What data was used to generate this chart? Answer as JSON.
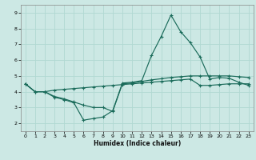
{
  "xlabel": "Humidex (Indice chaleur)",
  "xlim": [
    -0.5,
    23.5
  ],
  "ylim": [
    1.5,
    9.5
  ],
  "yticks": [
    2,
    3,
    4,
    5,
    6,
    7,
    8,
    9
  ],
  "xticks": [
    0,
    1,
    2,
    3,
    4,
    5,
    6,
    7,
    8,
    9,
    10,
    11,
    12,
    13,
    14,
    15,
    16,
    17,
    18,
    19,
    20,
    21,
    22,
    23
  ],
  "bg_color": "#cce8e4",
  "grid_color": "#b0d8d2",
  "line_color": "#1a6b5a",
  "line1_x": [
    0,
    1,
    2,
    3,
    4,
    5,
    6,
    7,
    8,
    9,
    10,
    11,
    12,
    13,
    14,
    15,
    16,
    17,
    18,
    19,
    20,
    21,
    22,
    23
  ],
  "line1_y": [
    4.5,
    4.0,
    4.0,
    3.65,
    3.5,
    3.3,
    2.2,
    2.3,
    2.4,
    2.8,
    4.55,
    4.6,
    4.7,
    6.3,
    7.5,
    8.85,
    7.8,
    7.1,
    6.2,
    4.8,
    4.9,
    4.85,
    4.6,
    4.4
  ],
  "line2_x": [
    0,
    1,
    2,
    3,
    4,
    5,
    6,
    7,
    8,
    9,
    10,
    11,
    12,
    13,
    14,
    15,
    16,
    17,
    18,
    19,
    20,
    21,
    22,
    23
  ],
  "line2_y": [
    4.5,
    4.0,
    4.0,
    4.1,
    4.15,
    4.2,
    4.25,
    4.3,
    4.35,
    4.4,
    4.45,
    4.5,
    4.55,
    4.6,
    4.65,
    4.7,
    4.75,
    4.8,
    4.4,
    4.4,
    4.45,
    4.5,
    4.5,
    4.5
  ],
  "line3_x": [
    0,
    1,
    2,
    3,
    4,
    5,
    6,
    7,
    8,
    9,
    10,
    11,
    12,
    13,
    14,
    15,
    16,
    17,
    18,
    19,
    20,
    21,
    22,
    23
  ],
  "line3_y": [
    4.5,
    4.0,
    4.0,
    3.7,
    3.55,
    3.35,
    3.15,
    3.0,
    3.0,
    2.75,
    4.5,
    4.55,
    4.65,
    4.75,
    4.82,
    4.9,
    4.95,
    5.0,
    5.0,
    5.0,
    5.0,
    5.0,
    4.95,
    4.9
  ]
}
